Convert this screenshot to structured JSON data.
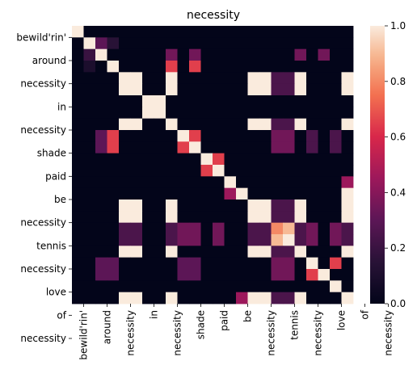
{
  "chart_data": {
    "type": "heatmap",
    "title": "necessity",
    "labels": [
      "bewild'rin'",
      "around",
      "around",
      "necessity",
      "necessity",
      "in",
      "in",
      "necessity",
      "shade",
      "shade",
      "paid",
      "paid",
      "be",
      "be",
      "necessity",
      "necessity",
      "tennis",
      "tennis",
      "necessity",
      "love",
      "love",
      "of",
      "necessity",
      "necessity"
    ],
    "row_tick_labels": [
      "bewild'rin'",
      "around",
      "necessity",
      "in",
      "necessity",
      "shade",
      "paid",
      "be",
      "necessity",
      "tennis",
      "necessity",
      "love",
      "of",
      "necessity"
    ],
    "col_tick_labels": [
      "bewild'rin'",
      "around",
      "necessity",
      "in",
      "necessity",
      "shade",
      "paid",
      "be",
      "necessity",
      "tennis",
      "necessity",
      "love",
      "of",
      "necessity"
    ],
    "matrix": [
      [
        1,
        0,
        0,
        0,
        0,
        0,
        0,
        0,
        0,
        0,
        0,
        0,
        0,
        0,
        0,
        0,
        0,
        0,
        0,
        0,
        0,
        0,
        0,
        0
      ],
      [
        0,
        1,
        0.3,
        0.15,
        0,
        0,
        0,
        0,
        0,
        0,
        0,
        0,
        0,
        0,
        0,
        0,
        0,
        0,
        0,
        0,
        0,
        0,
        0,
        0
      ],
      [
        0,
        0.2,
        1,
        0,
        0,
        0,
        0,
        0,
        0.35,
        0,
        0.35,
        0,
        0,
        0,
        0,
        0,
        0,
        0,
        0,
        0.35,
        0,
        0.35,
        0,
        0
      ],
      [
        0,
        0.1,
        0,
        1,
        0,
        0,
        0,
        0,
        0.65,
        0,
        0.65,
        0,
        0,
        0,
        0,
        0,
        0,
        0,
        0,
        0,
        0,
        0,
        0,
        0
      ],
      [
        0,
        0,
        0,
        0,
        1,
        1,
        0,
        0,
        1,
        0,
        0,
        0,
        0,
        0,
        0,
        1,
        1,
        0.25,
        0.25,
        1,
        0,
        0,
        0,
        1
      ],
      [
        0,
        0,
        0,
        0,
        1,
        1,
        0,
        0,
        1,
        0,
        0,
        0,
        0,
        0,
        0,
        1,
        1,
        0.25,
        0.25,
        1,
        0,
        0,
        0,
        1
      ],
      [
        0,
        0,
        0,
        0,
        0,
        0,
        1,
        1,
        0,
        0,
        0,
        0,
        0,
        0,
        0,
        0,
        0,
        0,
        0,
        0,
        0,
        0,
        0,
        0
      ],
      [
        0,
        0,
        0,
        0,
        0,
        0,
        1,
        1,
        0,
        0,
        0,
        0,
        0,
        0,
        0,
        0,
        0,
        0,
        0,
        0,
        0,
        0,
        0,
        0
      ],
      [
        0,
        0,
        0,
        0,
        1,
        1,
        0,
        0,
        1,
        0,
        0,
        0,
        0,
        0,
        0,
        1,
        1,
        0.25,
        0.25,
        1,
        0,
        0,
        0,
        1
      ],
      [
        0,
        0,
        0.3,
        0.65,
        0,
        0,
        0,
        0,
        0,
        1,
        0.65,
        0,
        0,
        0,
        0,
        0,
        0,
        0.35,
        0.35,
        0,
        0.25,
        0,
        0.25,
        0
      ],
      [
        0,
        0,
        0.3,
        0.65,
        0,
        0,
        0,
        0,
        0,
        0.65,
        1,
        0,
        0,
        0,
        0,
        0,
        0,
        0.35,
        0.35,
        0,
        0.25,
        0,
        0.25,
        0
      ],
      [
        0,
        0,
        0,
        0,
        0,
        0,
        0,
        0,
        0,
        0,
        0,
        1,
        0.65,
        0,
        0,
        0,
        0,
        0,
        0,
        0,
        0,
        0,
        0,
        0
      ],
      [
        0,
        0,
        0,
        0,
        0,
        0,
        0,
        0,
        0,
        0,
        0,
        0.65,
        1,
        0,
        0,
        0,
        0,
        0,
        0,
        0,
        0,
        0,
        0,
        0
      ],
      [
        0,
        0,
        0,
        0,
        0,
        0,
        0,
        0,
        0,
        0,
        0,
        0,
        0,
        1,
        0,
        0,
        0,
        0,
        0,
        0,
        0,
        0,
        0,
        0.45
      ],
      [
        0,
        0,
        0,
        0,
        0,
        0,
        0,
        0,
        0,
        0,
        0,
        0,
        0,
        0.45,
        1,
        0,
        0,
        0,
        0,
        0,
        0,
        0,
        0,
        1
      ],
      [
        0,
        0,
        0,
        0,
        1,
        1,
        0,
        0,
        1,
        0,
        0,
        0,
        0,
        0,
        0,
        1,
        1,
        0.25,
        0.25,
        1,
        0,
        0,
        0,
        1
      ],
      [
        0,
        0,
        0,
        0,
        1,
        1,
        0,
        0,
        1,
        0,
        0,
        0,
        0,
        0,
        0,
        1,
        1,
        0.25,
        0.25,
        1,
        0,
        0,
        0,
        1
      ],
      [
        0,
        0,
        0,
        0,
        0.25,
        0.25,
        0,
        0,
        0.25,
        0.35,
        0.35,
        0,
        0.35,
        0,
        0,
        0.25,
        0.25,
        0.8,
        0.9,
        0.25,
        0.35,
        0,
        0.35,
        0.25
      ],
      [
        0,
        0,
        0,
        0,
        0.25,
        0.25,
        0,
        0,
        0.25,
        0.35,
        0.35,
        0,
        0.35,
        0,
        0,
        0.25,
        0.25,
        0.9,
        1,
        0.25,
        0.35,
        0,
        0.35,
        0.25
      ],
      [
        0,
        0,
        0,
        0,
        1,
        1,
        0,
        0,
        1,
        0,
        0,
        0,
        0,
        0,
        0,
        1,
        1,
        0.25,
        0.25,
        1,
        0,
        0,
        0,
        1
      ],
      [
        0,
        0,
        0.3,
        0.3,
        0,
        0,
        0,
        0,
        0,
        0.3,
        0.3,
        0,
        0,
        0,
        0,
        0,
        0,
        0.35,
        0.35,
        0,
        1,
        0,
        0.65,
        0
      ],
      [
        0,
        0,
        0.3,
        0.3,
        0,
        0,
        0,
        0,
        0,
        0.3,
        0.3,
        0,
        0,
        0,
        0,
        0,
        0,
        0.35,
        0.35,
        0,
        0.65,
        1,
        0,
        0
      ],
      [
        0,
        0,
        0,
        0,
        0,
        0,
        0,
        0,
        0,
        0,
        0,
        0,
        0,
        0,
        0,
        0,
        0,
        0,
        0,
        0,
        0,
        0,
        1,
        0
      ],
      [
        0,
        0,
        0,
        0,
        1,
        1,
        0,
        0,
        1,
        0,
        0,
        0,
        0,
        0,
        0.45,
        1,
        1,
        0.25,
        0.25,
        1,
        0,
        0,
        0,
        1
      ]
    ],
    "colorbar": {
      "min": 0.0,
      "max": 1.0,
      "ticks": [
        "0.0",
        "0.2",
        "0.4",
        "0.6",
        "0.8",
        "1.0"
      ],
      "colormap": "rocket"
    },
    "grid": false,
    "legend": "right"
  }
}
